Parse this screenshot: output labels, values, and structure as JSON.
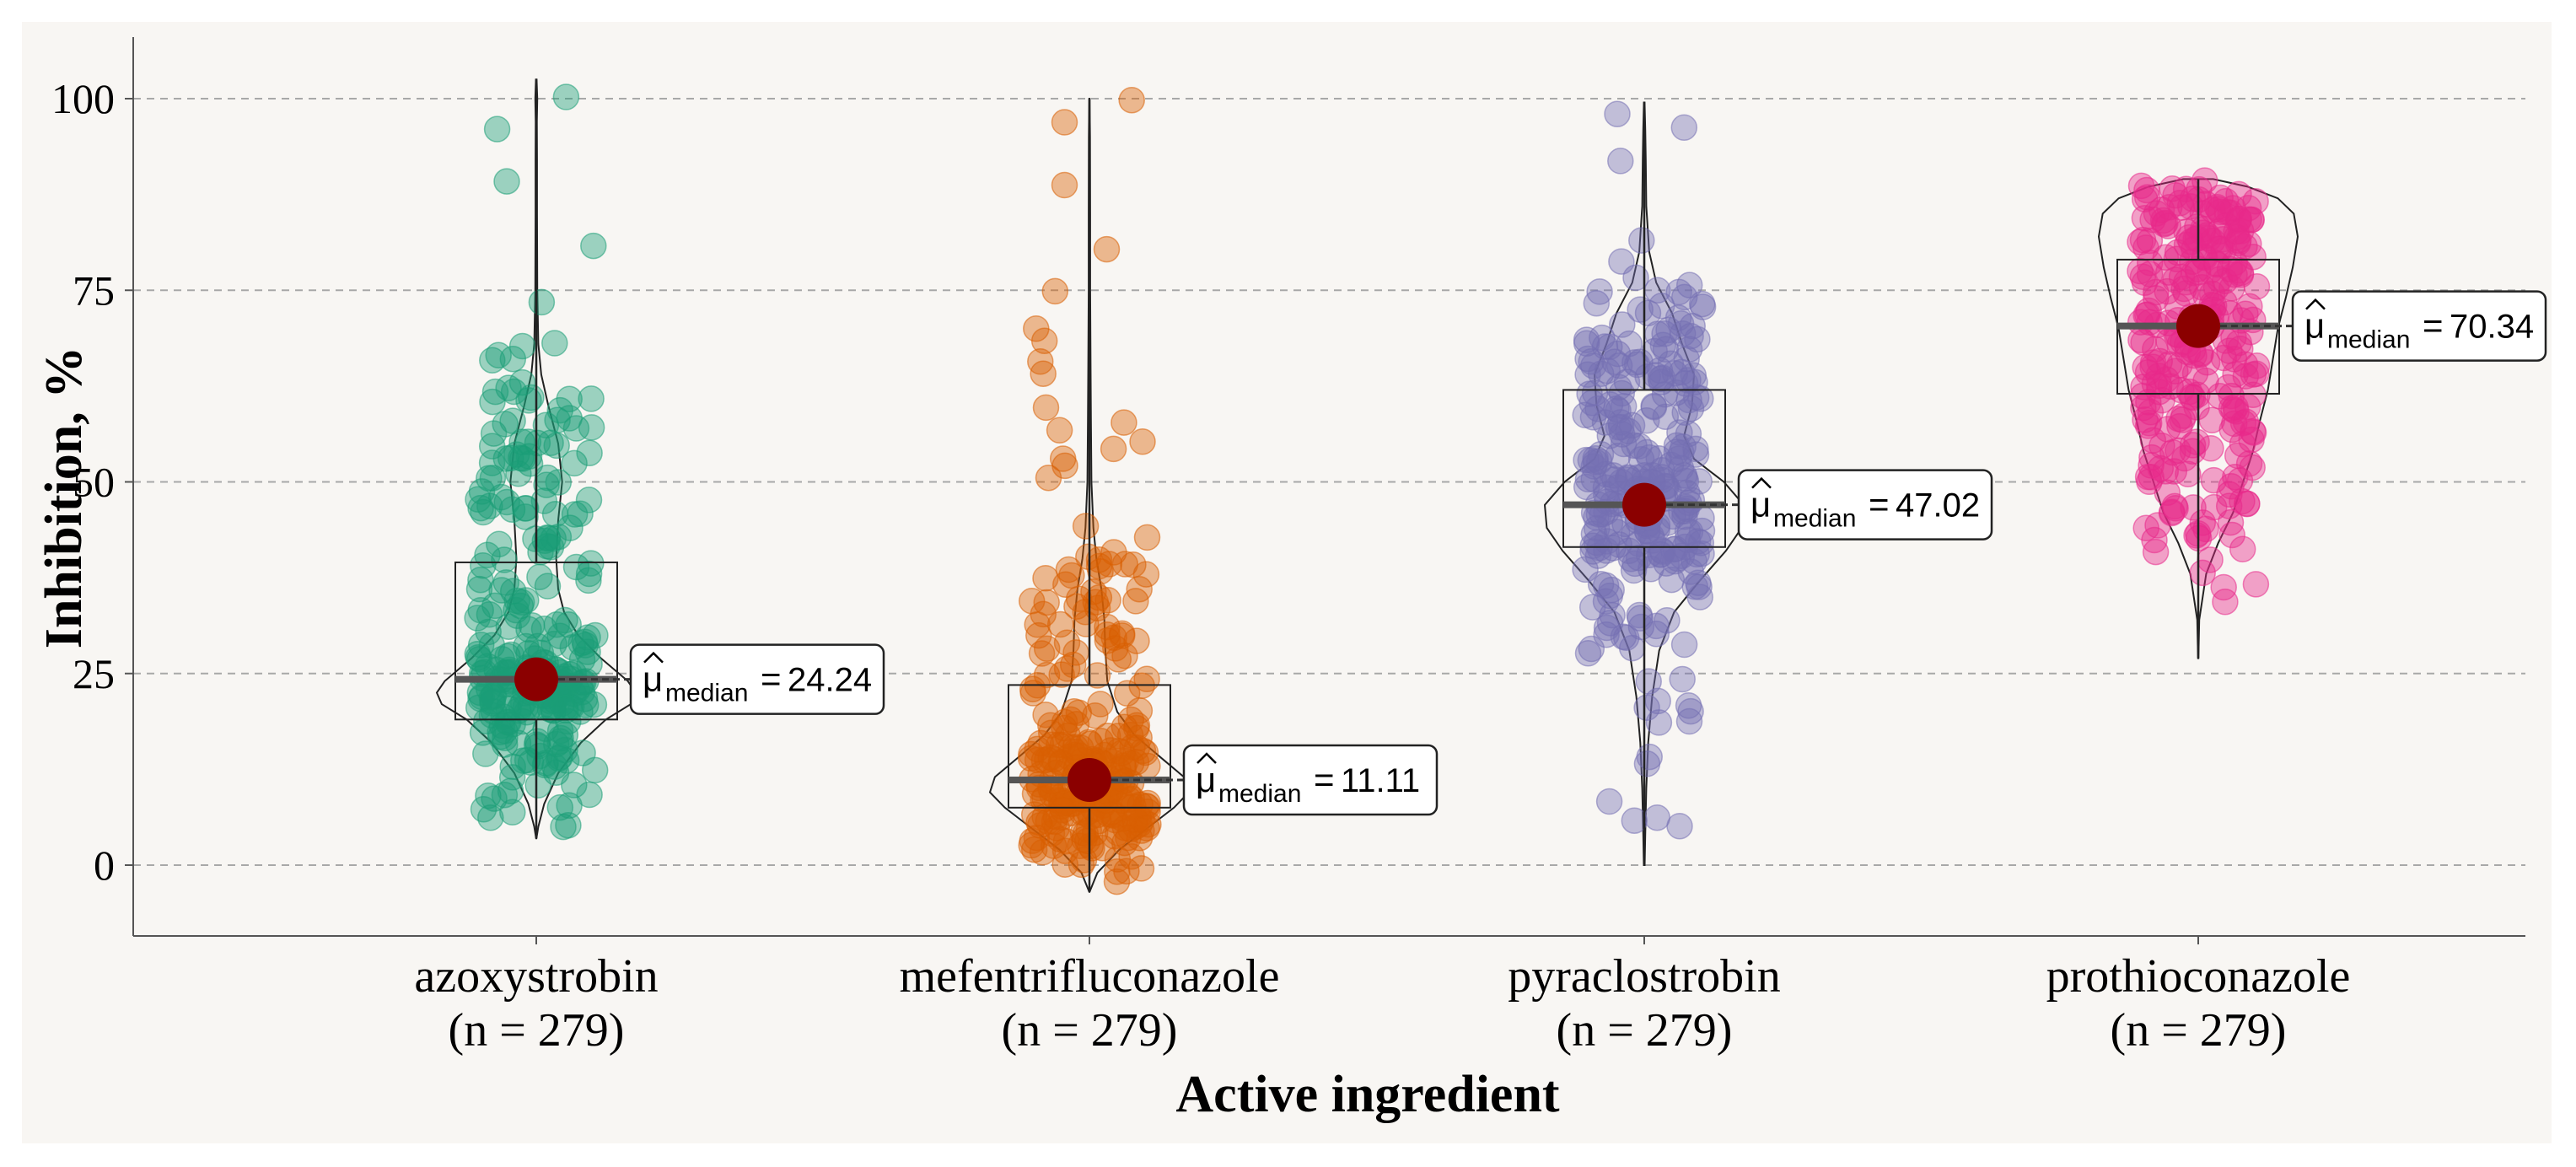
{
  "chart_data": {
    "type": "violin-box-scatter",
    "xlabel": "Active ingredient",
    "ylabel": "Inhibition, %",
    "ylim": [
      -9,
      109
    ],
    "yticks": [
      0,
      25,
      50,
      75,
      100
    ],
    "grid": "horizontal dashed",
    "median_symbol": "μ",
    "median_subscript": "median",
    "categories": [
      {
        "name": "azoxystrobin",
        "n_label": "(n = 279)",
        "n": 279,
        "color": "#1B9E77",
        "median": 24.24,
        "median_label": "24.24",
        "q1": 19,
        "q3": 39.5,
        "min": 3.5,
        "max": 102.5,
        "violin": [
          [
            3.5,
            0.002
          ],
          [
            5,
            0.02
          ],
          [
            8,
            0.08
          ],
          [
            12,
            0.22
          ],
          [
            16,
            0.45
          ],
          [
            19,
            0.7
          ],
          [
            21,
            0.95
          ],
          [
            22.5,
            1.0
          ],
          [
            24,
            0.92
          ],
          [
            27,
            0.65
          ],
          [
            30,
            0.42
          ],
          [
            33,
            0.28
          ],
          [
            36,
            0.22
          ],
          [
            40,
            0.2
          ],
          [
            45,
            0.22
          ],
          [
            50,
            0.26
          ],
          [
            55,
            0.22
          ],
          [
            60,
            0.12
          ],
          [
            64,
            0.05
          ],
          [
            68,
            0.02
          ],
          [
            75,
            0.01
          ],
          [
            85,
            0.008
          ],
          [
            92,
            0.008
          ],
          [
            97,
            0.006
          ],
          [
            100,
            0.01
          ],
          [
            102.5,
            0.003
          ]
        ]
      },
      {
        "name": "mefentrifluconazole",
        "n_label": "(n = 279)",
        "n": 279,
        "color": "#D95F02",
        "median": 11.11,
        "median_label": "11.11",
        "q1": 7.5,
        "q3": 23.5,
        "min": -3.5,
        "max": 100,
        "violin": [
          [
            -3.5,
            0.002
          ],
          [
            -1,
            0.08
          ],
          [
            2,
            0.3
          ],
          [
            5,
            0.6
          ],
          [
            7.5,
            0.85
          ],
          [
            9.5,
            1.0
          ],
          [
            11.5,
            0.95
          ],
          [
            14,
            0.72
          ],
          [
            17,
            0.45
          ],
          [
            20,
            0.28
          ],
          [
            24,
            0.18
          ],
          [
            28,
            0.16
          ],
          [
            32,
            0.15
          ],
          [
            36,
            0.12
          ],
          [
            40,
            0.07
          ],
          [
            44,
            0.04
          ],
          [
            50,
            0.02
          ],
          [
            58,
            0.015
          ],
          [
            65,
            0.012
          ],
          [
            75,
            0.008
          ],
          [
            85,
            0.008
          ],
          [
            95,
            0.006
          ],
          [
            100,
            0.002
          ]
        ]
      },
      {
        "name": "pyraclostrobin",
        "n_label": "(n = 279)",
        "n": 279,
        "color": "#7570B3",
        "median": 47.02,
        "median_label": "47.02",
        "q1": 41.5,
        "q3": 62,
        "min": 0,
        "max": 99.5,
        "violin": [
          [
            0,
            0.004
          ],
          [
            4,
            0.01
          ],
          [
            10,
            0.02
          ],
          [
            16,
            0.04
          ],
          [
            22,
            0.08
          ],
          [
            28,
            0.15
          ],
          [
            33,
            0.3
          ],
          [
            37,
            0.55
          ],
          [
            41,
            0.82
          ],
          [
            44,
            0.98
          ],
          [
            47,
            1.0
          ],
          [
            50,
            0.8
          ],
          [
            53,
            0.5
          ],
          [
            56,
            0.4
          ],
          [
            60,
            0.48
          ],
          [
            64,
            0.5
          ],
          [
            68,
            0.38
          ],
          [
            72,
            0.28
          ],
          [
            76,
            0.12
          ],
          [
            80,
            0.05
          ],
          [
            86,
            0.02
          ],
          [
            92,
            0.015
          ],
          [
            96,
            0.01
          ],
          [
            99.5,
            0.003
          ]
        ]
      },
      {
        "name": "prothioconazole",
        "n_label": "(n = 279)",
        "n": 279,
        "color": "#E7298A",
        "median": 70.34,
        "median_label": "70.34",
        "q1": 61.5,
        "q3": 79,
        "min": 27,
        "max": 89.5,
        "violin": [
          [
            27,
            0.002
          ],
          [
            32,
            0.01
          ],
          [
            38,
            0.08
          ],
          [
            42,
            0.2
          ],
          [
            46,
            0.35
          ],
          [
            50,
            0.45
          ],
          [
            54,
            0.55
          ],
          [
            58,
            0.62
          ],
          [
            62,
            0.7
          ],
          [
            66,
            0.75
          ],
          [
            70,
            0.8
          ],
          [
            74,
            0.88
          ],
          [
            78,
            0.95
          ],
          [
            82,
            1.0
          ],
          [
            85,
            0.96
          ],
          [
            87,
            0.8
          ],
          [
            88.5,
            0.5
          ],
          [
            89.5,
            0.15
          ]
        ]
      }
    ]
  }
}
